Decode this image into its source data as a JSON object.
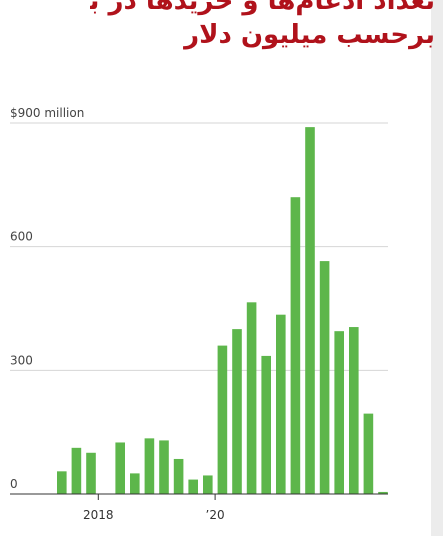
{
  "header": {
    "title_line1": "تعداد ادغام‌ها و خریدها در بازار",
    "title_line2": "برحسب میلیون دلار"
  },
  "colors": {
    "bar": "#5db64b",
    "title": "#b0121b",
    "grid": "#d6d6d6",
    "axis": "#333333"
  },
  "chart_data": {
    "type": "bar",
    "ylabel": "",
    "xlabel": "",
    "ylim": [
      0,
      900
    ],
    "grid": true,
    "y_ticks": [
      {
        "value": 900,
        "label": "$900 million"
      },
      {
        "value": 600,
        "label": "600"
      },
      {
        "value": 300,
        "label": "300"
      },
      {
        "value": 0,
        "label": "0"
      }
    ],
    "x_tick_labels": [
      {
        "label": "2018",
        "after_bar": 2
      },
      {
        "label": "’20",
        "after_bar": 10
      }
    ],
    "values": [
      55,
      112,
      100,
      0,
      125,
      50,
      135,
      130,
      85,
      35,
      45,
      360,
      400,
      465,
      335,
      435,
      720,
      890,
      565,
      395,
      405,
      195,
      5
    ]
  }
}
